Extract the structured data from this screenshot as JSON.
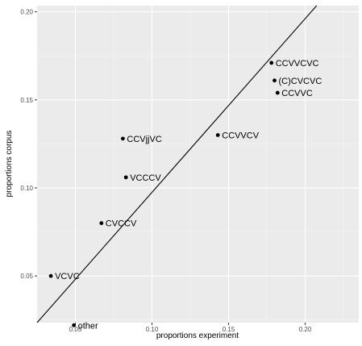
{
  "chart_data": {
    "type": "scatter",
    "xlabel": "proportions experiment",
    "ylabel": "proportions corpus",
    "xlim": [
      0.025,
      0.235
    ],
    "ylim": [
      0.0235,
      0.2035
    ],
    "xticks": [
      0.05,
      0.1,
      0.15,
      0.2
    ],
    "yticks": [
      0.05,
      0.1,
      0.15,
      0.2
    ],
    "xtick_labels": [
      "0.05",
      "0.10",
      "0.15",
      "0.20"
    ],
    "ytick_labels": [
      "0.05",
      "0.10",
      "0.15",
      "0.20"
    ],
    "grid": true,
    "points": [
      {
        "label": "CCVVCVC",
        "x": 0.178,
        "y": 0.171
      },
      {
        "label": "(C)CVCVC",
        "x": 0.18,
        "y": 0.161
      },
      {
        "label": "CCVVC",
        "x": 0.182,
        "y": 0.154
      },
      {
        "label": "CCVVCV",
        "x": 0.143,
        "y": 0.13
      },
      {
        "label": "CCVjjVC",
        "x": 0.081,
        "y": 0.128
      },
      {
        "label": "VCCCV",
        "x": 0.083,
        "y": 0.106
      },
      {
        "label": "CVCCV",
        "x": 0.067,
        "y": 0.08
      },
      {
        "label": "VCVC",
        "x": 0.034,
        "y": 0.05
      },
      {
        "label": "other",
        "x": 0.049,
        "y": 0.022
      }
    ],
    "line": {
      "x": [
        0.025,
        0.2075
      ],
      "y": [
        0.0235,
        0.2035
      ]
    },
    "colors": {
      "panel": "#ebebeb",
      "grid_major": "#ffffff",
      "grid_minor": "#f5f5f5",
      "point": "#000000",
      "line": "#000000"
    }
  }
}
